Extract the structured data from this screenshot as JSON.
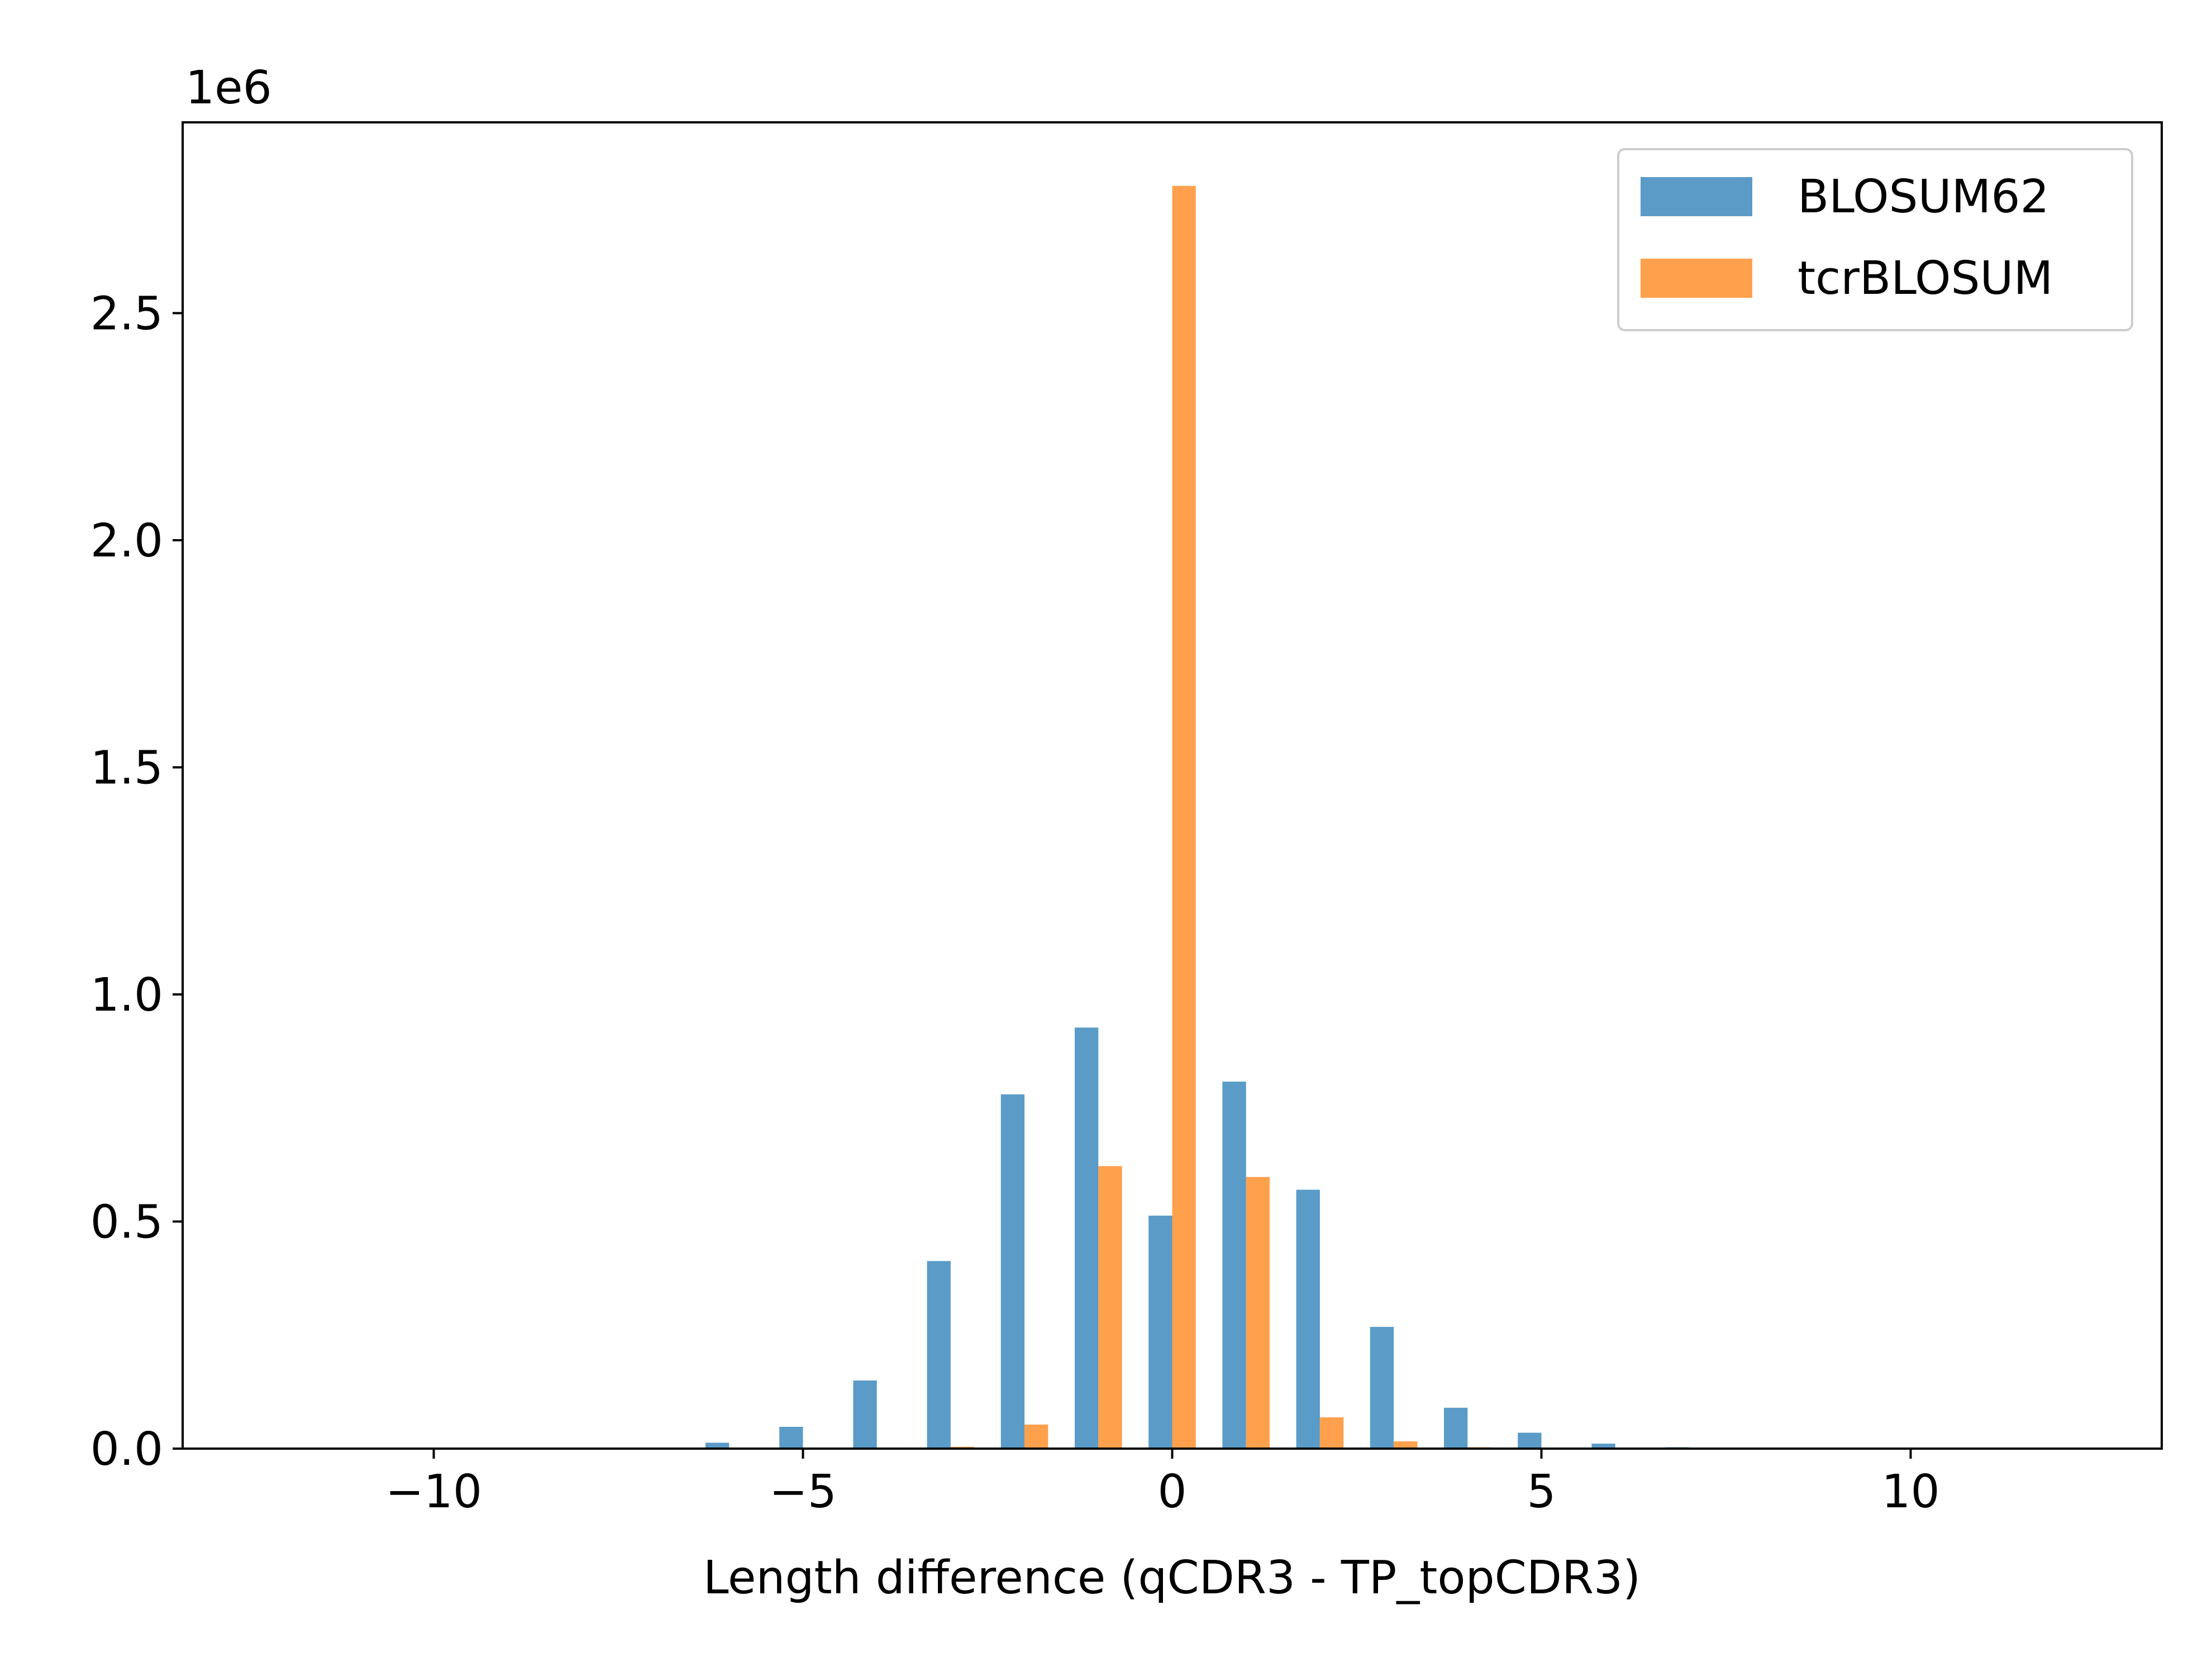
{
  "chart_data": {
    "type": "bar",
    "xlabel": "Length difference (qCDR3 - TP_topCDR3)",
    "ylabel": "",
    "y_offset_label": "1e6",
    "xlim": [
      -13.4,
      13.4
    ],
    "ylim": [
      0,
      2.92
    ],
    "y_scale_factor": 1000000,
    "xticks": [
      -10,
      -5,
      0,
      5,
      10
    ],
    "xtick_labels": [
      "−10",
      "−5",
      "0",
      "5",
      "10"
    ],
    "yticks": [
      0.0,
      0.5,
      1.0,
      1.5,
      2.0,
      2.5
    ],
    "ytick_labels": [
      "0.0",
      "0.5",
      "1.0",
      "1.5",
      "2.0",
      "2.5"
    ],
    "grid": false,
    "legend_position": "top-right",
    "bar_offset": 0.32,
    "bar_width": 0.32,
    "series": [
      {
        "name": "BLOSUM62",
        "color": "#5b9bc8",
        "x": [
          -6,
          -5,
          -4,
          -3,
          -2,
          -1,
          0,
          1,
          2,
          3,
          4,
          5,
          6,
          7
        ],
        "values": [
          0.013,
          0.048,
          0.15,
          0.413,
          0.78,
          0.927,
          0.513,
          0.808,
          0.57,
          0.268,
          0.09,
          0.035,
          0.011,
          0.003
        ]
      },
      {
        "name": "tcrBLOSUM",
        "color": "#ffa04d",
        "x": [
          -3,
          -2,
          -1,
          0,
          1,
          2,
          3,
          4
        ],
        "values": [
          0.004,
          0.053,
          0.622,
          2.78,
          0.598,
          0.069,
          0.016,
          0.003
        ]
      }
    ]
  }
}
